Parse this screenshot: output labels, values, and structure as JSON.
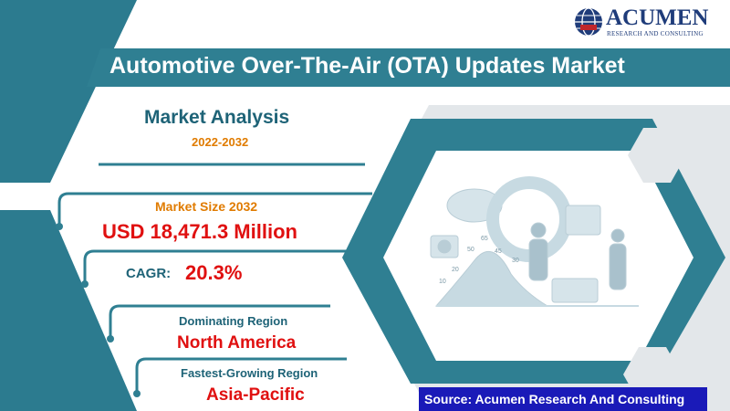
{
  "brand": {
    "name": "ACUMEN",
    "tagline": "RESEARCH AND CONSULTING",
    "logo_icon": "globe-icon"
  },
  "title": "Automotive Over-The-Air (OTA) Updates Market",
  "analysis": {
    "heading": "Market Analysis",
    "period": "2022-2032"
  },
  "market_size": {
    "label": "Market Size 2032",
    "value": "USD 18,471.3 Million"
  },
  "cagr": {
    "label": "CAGR:",
    "value": "20.3%"
  },
  "dominating_region": {
    "label": "Dominating Region",
    "value": "North America"
  },
  "fastest_region": {
    "label": "Fastest-Growing Region",
    "value": "Asia-Pacific"
  },
  "illustration": {
    "numbers": [
      "65",
      "50",
      "45",
      "30",
      "20",
      "10"
    ]
  },
  "source": "Source: Acumen Research And Consulting",
  "colors": {
    "teal": "#2f7f92",
    "dark_teal": "#1e6377",
    "orange": "#e07b00",
    "red": "#e01010",
    "navy": "#1f4e79",
    "source_bg": "#1a1ab8"
  }
}
